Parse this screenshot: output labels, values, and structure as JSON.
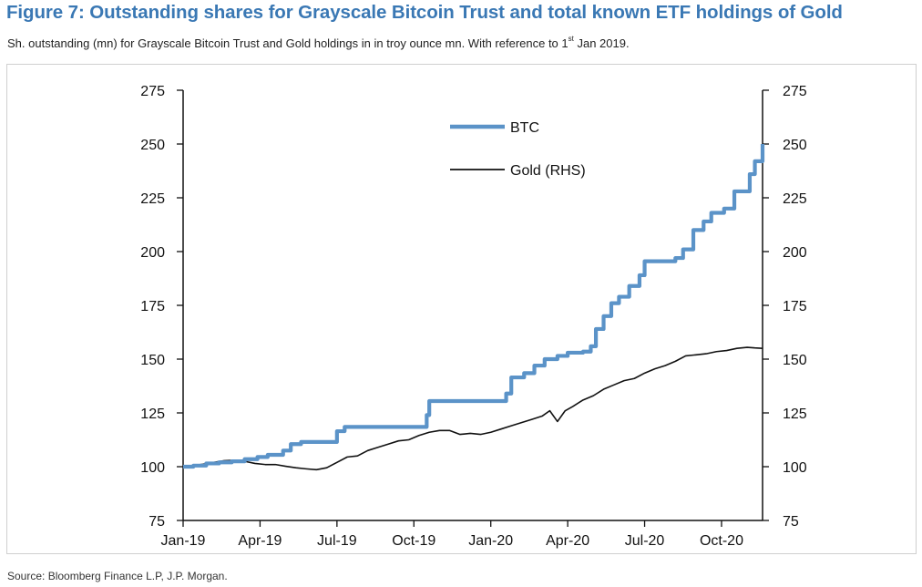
{
  "header": {
    "title": "Figure 7: Outstanding shares for Grayscale Bitcoin Trust and total known ETF holdings of Gold",
    "subtitle_main": "Sh. outstanding (mn) for Grayscale Bitcoin Trust and Gold holdings in in troy ounce mn. With reference to 1",
    "subtitle_sup": "st",
    "subtitle_tail": " Jan 2019."
  },
  "footer": {
    "source": "Source: Bloomberg Finance L.P, J.P. Morgan."
  },
  "colors": {
    "title": "#3a78b4",
    "btc": "#5b93c8",
    "gold": "#111111",
    "axis": "#111111"
  },
  "chart_data": {
    "type": "line",
    "title": "Outstanding shares for Grayscale Bitcoin Trust and total known ETF holdings of Gold",
    "xlabel": "",
    "ylabel": "",
    "y2label": "",
    "ylim": [
      75,
      275
    ],
    "y2lim": [
      75,
      275
    ],
    "y_ticks": [
      "75",
      "100",
      "125",
      "150",
      "175",
      "200",
      "225",
      "250",
      "275"
    ],
    "y2_ticks": [
      "75",
      "100",
      "125",
      "150",
      "175",
      "200",
      "225",
      "250",
      "275"
    ],
    "x_range_months": [
      0,
      22.6
    ],
    "x_ticks": [
      {
        "label": "Jan-19",
        "month": 0
      },
      {
        "label": "Apr-19",
        "month": 3
      },
      {
        "label": "Jul-19",
        "month": 6
      },
      {
        "label": "Oct-19",
        "month": 9
      },
      {
        "label": "Jan-20",
        "month": 12
      },
      {
        "label": "Apr-20",
        "month": 15
      },
      {
        "label": "Jul-20",
        "month": 18
      },
      {
        "label": "Oct-20",
        "month": 21
      }
    ],
    "legend_position": "top-center",
    "series": [
      {
        "name": "BTC",
        "axis": "left",
        "step": true,
        "points": [
          [
            0,
            100
          ],
          [
            0.4,
            100.5
          ],
          [
            0.9,
            101.5
          ],
          [
            1.4,
            102
          ],
          [
            1.9,
            102.5
          ],
          [
            2.4,
            103.5
          ],
          [
            2.9,
            104.5
          ],
          [
            3.3,
            105.5
          ],
          [
            3.9,
            107.5
          ],
          [
            4.2,
            110.5
          ],
          [
            4.6,
            111.5
          ],
          [
            5.3,
            111.5
          ],
          [
            5.3,
            111.5
          ],
          [
            5.9,
            111.5
          ],
          [
            6.0,
            116.5
          ],
          [
            6.3,
            118.5
          ],
          [
            7.5,
            118.5
          ],
          [
            8.7,
            118.5
          ],
          [
            9.4,
            118.5
          ],
          [
            9.5,
            124
          ],
          [
            9.6,
            130.5
          ],
          [
            10.5,
            130.5
          ],
          [
            11.5,
            130.5
          ],
          [
            12.4,
            130.5
          ],
          [
            12.6,
            134
          ],
          [
            12.8,
            141.5
          ],
          [
            13.3,
            143.5
          ],
          [
            13.7,
            147
          ],
          [
            14.1,
            150
          ],
          [
            14.6,
            151.5
          ],
          [
            15.0,
            153
          ],
          [
            15.6,
            153.5
          ],
          [
            15.9,
            156
          ],
          [
            16.1,
            164
          ],
          [
            16.4,
            170
          ],
          [
            16.7,
            176
          ],
          [
            17.0,
            179
          ],
          [
            17.4,
            184
          ],
          [
            17.8,
            189
          ],
          [
            18.0,
            195.5
          ],
          [
            18.8,
            195.5
          ],
          [
            19.2,
            197
          ],
          [
            19.5,
            201
          ],
          [
            19.9,
            210
          ],
          [
            20.3,
            214
          ],
          [
            20.6,
            218
          ],
          [
            21.1,
            220
          ],
          [
            21.5,
            228
          ],
          [
            22.0,
            228
          ],
          [
            22.1,
            236
          ],
          [
            22.3,
            242
          ],
          [
            22.6,
            250
          ]
        ]
      },
      {
        "name": "Gold (RHS)",
        "axis": "right",
        "step": false,
        "points": [
          [
            0,
            100
          ],
          [
            0.4,
            100.5
          ],
          [
            0.8,
            101.2
          ],
          [
            1.2,
            102
          ],
          [
            1.6,
            102.8
          ],
          [
            2.0,
            103
          ],
          [
            2.4,
            102.5
          ],
          [
            2.8,
            101.5
          ],
          [
            3.2,
            101
          ],
          [
            3.6,
            101
          ],
          [
            4.0,
            100.2
          ],
          [
            4.4,
            99.5
          ],
          [
            4.8,
            99
          ],
          [
            5.2,
            98.6
          ],
          [
            5.6,
            99.5
          ],
          [
            6.0,
            102
          ],
          [
            6.4,
            104.5
          ],
          [
            6.8,
            105
          ],
          [
            7.2,
            107.5
          ],
          [
            7.6,
            109
          ],
          [
            8.0,
            110.5
          ],
          [
            8.4,
            112
          ],
          [
            8.8,
            112.5
          ],
          [
            9.2,
            114.5
          ],
          [
            9.6,
            116
          ],
          [
            10.0,
            116.8
          ],
          [
            10.4,
            116.8
          ],
          [
            10.8,
            115
          ],
          [
            11.2,
            115.5
          ],
          [
            11.6,
            115
          ],
          [
            12.0,
            116
          ],
          [
            12.4,
            117.5
          ],
          [
            12.8,
            119
          ],
          [
            13.2,
            120.5
          ],
          [
            13.6,
            122
          ],
          [
            14.0,
            123.5
          ],
          [
            14.3,
            126
          ],
          [
            14.6,
            121
          ],
          [
            14.9,
            126
          ],
          [
            15.2,
            128
          ],
          [
            15.6,
            131
          ],
          [
            16.0,
            133
          ],
          [
            16.4,
            136
          ],
          [
            16.8,
            138
          ],
          [
            17.2,
            140
          ],
          [
            17.6,
            141
          ],
          [
            18.0,
            143.5
          ],
          [
            18.4,
            145.5
          ],
          [
            18.8,
            147
          ],
          [
            19.2,
            149
          ],
          [
            19.6,
            151.5
          ],
          [
            20.0,
            152
          ],
          [
            20.4,
            152.5
          ],
          [
            20.8,
            153.5
          ],
          [
            21.2,
            154
          ],
          [
            21.6,
            155
          ],
          [
            22.0,
            155.5
          ],
          [
            22.3,
            155.2
          ],
          [
            22.6,
            155
          ]
        ]
      }
    ]
  }
}
